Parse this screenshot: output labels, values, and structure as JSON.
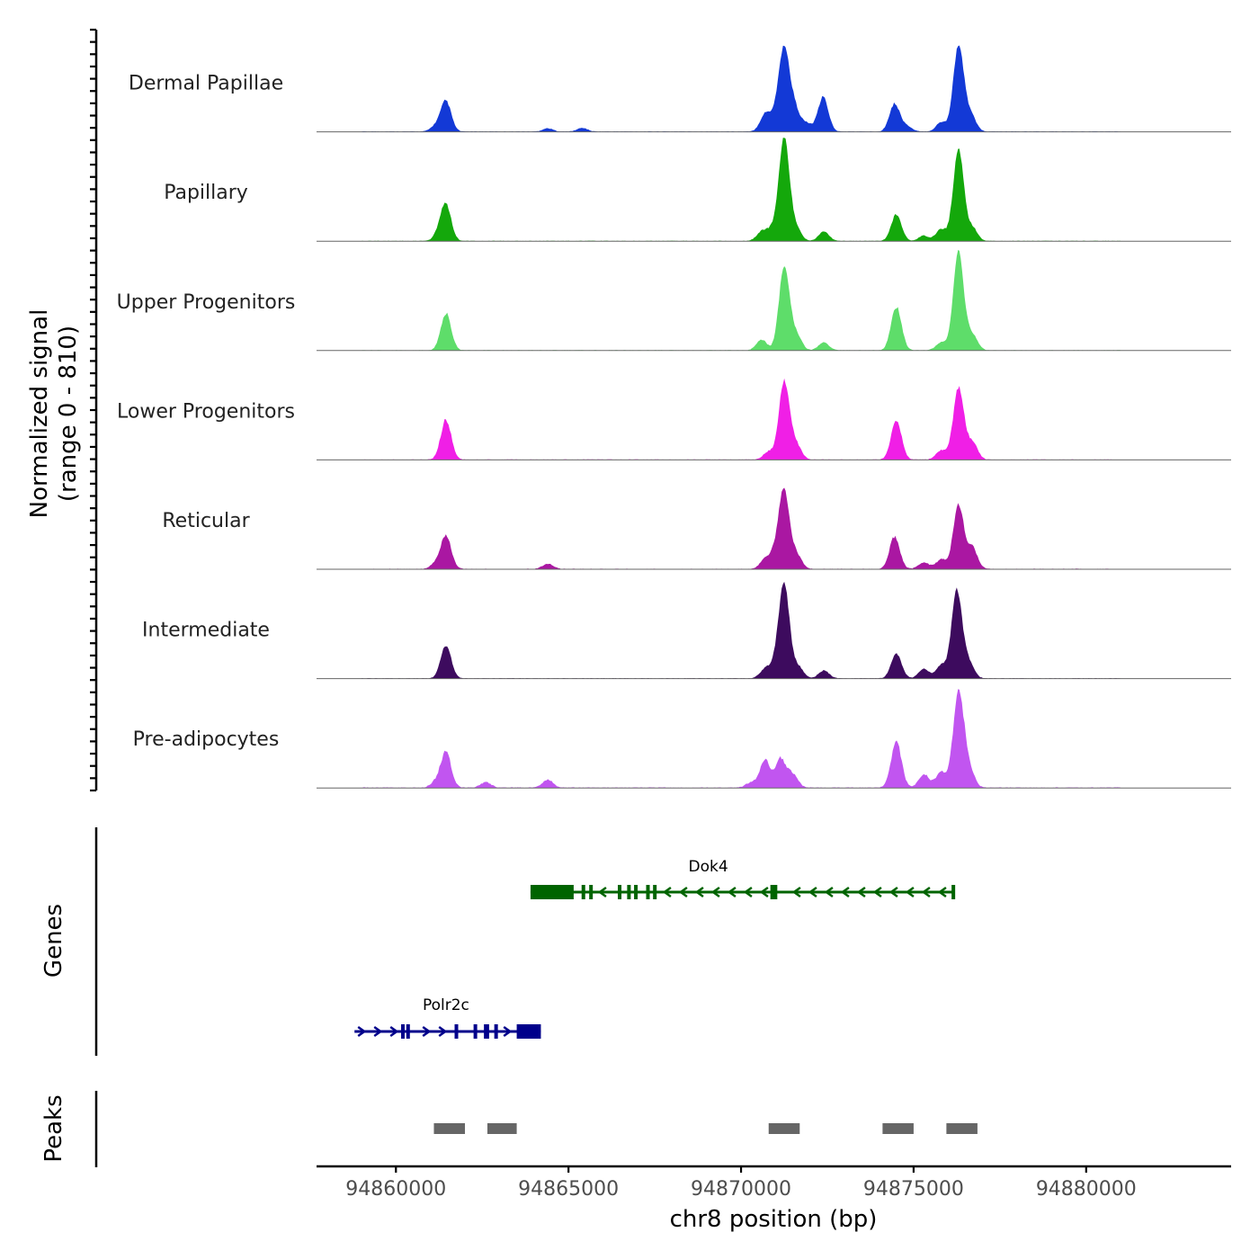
{
  "chart_data": {
    "type": "area",
    "title": "",
    "chromosome": "chr8",
    "xlabel": "chr8 position (bp)",
    "xlim": [
      94857700,
      94884200
    ],
    "x_ticks": [
      94860000,
      94865000,
      94870000,
      94875000,
      94880000
    ],
    "x_tick_labels": [
      "94860000",
      "94865000",
      "94870000",
      "94875000",
      "94880000"
    ],
    "ylabel_line1": "Normalized signal",
    "ylabel_line2": "(range 0 - 810)",
    "ylim": [
      0,
      810
    ],
    "peak_shape_width_bp": 150,
    "series": [
      {
        "name": "Dermal Papillae",
        "color": "#1339D6",
        "baseline": 4,
        "peaks": [
          {
            "x": 94861150,
            "h": 40
          },
          {
            "x": 94861450,
            "h": 230
          },
          {
            "x": 94864400,
            "h": 25
          },
          {
            "x": 94865400,
            "h": 28
          },
          {
            "x": 94870700,
            "h": 130
          },
          {
            "x": 94871000,
            "h": 100
          },
          {
            "x": 94871250,
            "h": 620
          },
          {
            "x": 94871550,
            "h": 170
          },
          {
            "x": 94871900,
            "h": 60
          },
          {
            "x": 94872380,
            "h": 260
          },
          {
            "x": 94874450,
            "h": 210
          },
          {
            "x": 94874800,
            "h": 40
          },
          {
            "x": 94875800,
            "h": 70
          },
          {
            "x": 94876300,
            "h": 660
          },
          {
            "x": 94876650,
            "h": 130
          }
        ]
      },
      {
        "name": "Papillary",
        "color": "#14A80B",
        "baseline": 4,
        "peaks": [
          {
            "x": 94861250,
            "h": 50
          },
          {
            "x": 94861450,
            "h": 270
          },
          {
            "x": 94870600,
            "h": 70
          },
          {
            "x": 94870900,
            "h": 80
          },
          {
            "x": 94871250,
            "h": 800
          },
          {
            "x": 94871600,
            "h": 90
          },
          {
            "x": 94872400,
            "h": 70
          },
          {
            "x": 94874500,
            "h": 200
          },
          {
            "x": 94875300,
            "h": 40
          },
          {
            "x": 94875800,
            "h": 90
          },
          {
            "x": 94876300,
            "h": 710
          },
          {
            "x": 94876700,
            "h": 100
          }
        ]
      },
      {
        "name": "Upper Progenitors",
        "color": "#5EDD6A",
        "baseline": 4,
        "peaks": [
          {
            "x": 94861450,
            "h": 280
          },
          {
            "x": 94870600,
            "h": 80
          },
          {
            "x": 94871250,
            "h": 640
          },
          {
            "x": 94871600,
            "h": 120
          },
          {
            "x": 94872400,
            "h": 60
          },
          {
            "x": 94874500,
            "h": 330
          },
          {
            "x": 94875800,
            "h": 60
          },
          {
            "x": 94876300,
            "h": 760
          },
          {
            "x": 94876700,
            "h": 120
          }
        ]
      },
      {
        "name": "Lower Progenitors",
        "color": "#F01FE6",
        "baseline": 5,
        "peaks": [
          {
            "x": 94861450,
            "h": 300
          },
          {
            "x": 94870800,
            "h": 60
          },
          {
            "x": 94871250,
            "h": 600
          },
          {
            "x": 94871600,
            "h": 110
          },
          {
            "x": 94874500,
            "h": 290
          },
          {
            "x": 94875800,
            "h": 70
          },
          {
            "x": 94876300,
            "h": 550
          },
          {
            "x": 94876700,
            "h": 130
          }
        ]
      },
      {
        "name": "Reticular",
        "color": "#AA17A2",
        "baseline": 5,
        "peaks": [
          {
            "x": 94861150,
            "h": 40
          },
          {
            "x": 94861450,
            "h": 250
          },
          {
            "x": 94864400,
            "h": 40
          },
          {
            "x": 94870700,
            "h": 70
          },
          {
            "x": 94871000,
            "h": 110
          },
          {
            "x": 94871250,
            "h": 580
          },
          {
            "x": 94871600,
            "h": 110
          },
          {
            "x": 94874450,
            "h": 240
          },
          {
            "x": 94875300,
            "h": 50
          },
          {
            "x": 94875800,
            "h": 70
          },
          {
            "x": 94876300,
            "h": 490
          },
          {
            "x": 94876700,
            "h": 160
          }
        ]
      },
      {
        "name": "Intermediate",
        "color": "#3D0B5E",
        "baseline": 4,
        "peaks": [
          {
            "x": 94861450,
            "h": 250
          },
          {
            "x": 94870700,
            "h": 70
          },
          {
            "x": 94871000,
            "h": 90
          },
          {
            "x": 94871250,
            "h": 720
          },
          {
            "x": 94871650,
            "h": 90
          },
          {
            "x": 94872400,
            "h": 60
          },
          {
            "x": 94874500,
            "h": 190
          },
          {
            "x": 94875300,
            "h": 70
          },
          {
            "x": 94875800,
            "h": 100
          },
          {
            "x": 94876250,
            "h": 680
          },
          {
            "x": 94876600,
            "h": 120
          }
        ]
      },
      {
        "name": "Pre-adipocytes",
        "color": "#C155F0",
        "baseline": 6,
        "peaks": [
          {
            "x": 94861150,
            "h": 40
          },
          {
            "x": 94861450,
            "h": 260
          },
          {
            "x": 94862600,
            "h": 40
          },
          {
            "x": 94864400,
            "h": 60
          },
          {
            "x": 94870300,
            "h": 40
          },
          {
            "x": 94870700,
            "h": 200
          },
          {
            "x": 94871150,
            "h": 210
          },
          {
            "x": 94871500,
            "h": 100
          },
          {
            "x": 94874500,
            "h": 340
          },
          {
            "x": 94875300,
            "h": 100
          },
          {
            "x": 94875800,
            "h": 120
          },
          {
            "x": 94876300,
            "h": 730
          },
          {
            "x": 94876600,
            "h": 150
          }
        ]
      }
    ],
    "genes_track": {
      "label": "Genes",
      "genes": [
        {
          "name": "Dok4",
          "color": "#006400",
          "strand": "-",
          "start": 94863900,
          "end": 94876200,
          "exons": [
            [
              94863900,
              94865150
            ],
            [
              94865380,
              94865440
            ],
            [
              94865600,
              94865660
            ],
            [
              94866430,
              94866520
            ],
            [
              94866700,
              94866760
            ],
            [
              94866900,
              94866960
            ],
            [
              94867250,
              94867310
            ],
            [
              94867450,
              94867510
            ],
            [
              94870850,
              94871050
            ],
            [
              94876100,
              94876200
            ]
          ]
        },
        {
          "name": "Polr2c",
          "color": "#00008B",
          "strand": "+",
          "start": 94858800,
          "end": 94864200,
          "exons": [
            [
              94860150,
              94860200
            ],
            [
              94860300,
              94860350
            ],
            [
              94861700,
              94861800
            ],
            [
              94862250,
              94862300
            ],
            [
              94862550,
              94862700
            ],
            [
              94862850,
              94862900
            ],
            [
              94863500,
              94864200
            ]
          ]
        }
      ]
    },
    "peaks_track": {
      "label": "Peaks",
      "color": "#666666",
      "regions": [
        [
          94861100,
          94862000
        ],
        [
          94862650,
          94863500
        ],
        [
          94870800,
          94871700
        ],
        [
          94874100,
          94875000
        ],
        [
          94875950,
          94876850
        ]
      ]
    }
  }
}
